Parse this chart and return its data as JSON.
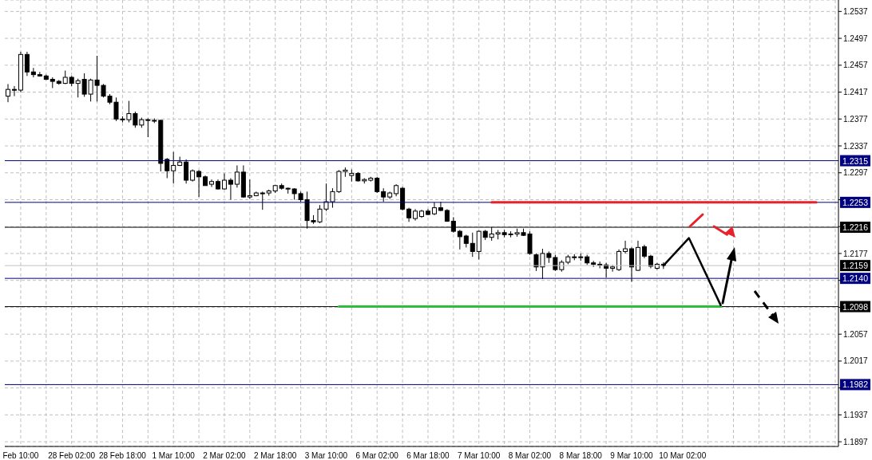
{
  "chart_data": {
    "type": "candlestick",
    "categories": [
      null,
      null,
      "Feb 10:00",
      null,
      null,
      null,
      null,
      null,
      null,
      null,
      "28 Feb 02:00",
      null,
      null,
      null,
      null,
      null,
      null,
      null,
      "28 Feb 18:00",
      null,
      null,
      null,
      null,
      null,
      null,
      null,
      "1 Mar 10:00",
      null,
      null,
      null,
      null,
      null,
      null,
      null,
      "2 Mar 02:00",
      null,
      null,
      null,
      null,
      null,
      null,
      null,
      "2 Mar 18:00",
      null,
      null,
      null,
      null,
      null,
      null,
      null,
      "3 Mar 10:00",
      null,
      null,
      null,
      null,
      null,
      null,
      null,
      "6 Mar 02:00",
      null,
      null,
      null,
      null,
      null,
      null,
      null,
      "6 Mar 18:00",
      null,
      null,
      null,
      null,
      null,
      null,
      null,
      "7 Mar 10:00",
      null,
      null,
      null,
      null,
      null,
      null,
      null,
      "8 Mar 02:00",
      null,
      null,
      null,
      null,
      null,
      null,
      null,
      "8 Mar 18:00",
      null,
      null,
      null,
      null,
      null,
      null,
      null,
      "9 Mar 10:00",
      null,
      null,
      null,
      null,
      null,
      null,
      null,
      "10 Mar 02:00",
      null,
      null,
      null,
      null,
      null,
      null,
      null,
      null,
      null,
      null,
      null,
      null,
      null,
      null,
      null,
      null,
      null,
      null,
      null,
      null,
      null,
      null,
      null,
      null
    ],
    "ohlc": [
      [
        1.2411,
        1.2429,
        1.2402,
        1.2421
      ],
      [
        1.2421,
        1.2426,
        1.2411,
        1.242
      ],
      [
        1.242,
        1.2477,
        1.2417,
        1.2473
      ],
      [
        1.2473,
        1.2477,
        1.2441,
        1.2447
      ],
      [
        1.2447,
        1.2453,
        1.2439,
        1.2443
      ],
      [
        1.2443,
        1.2447,
        1.244,
        1.2441
      ],
      [
        1.2441,
        1.2443,
        1.2435,
        1.2436
      ],
      [
        1.2436,
        1.2439,
        1.2423,
        1.2433
      ],
      [
        1.2433,
        1.2435,
        1.2428,
        1.243
      ],
      [
        1.243,
        1.2449,
        1.2429,
        1.2439
      ],
      [
        1.2439,
        1.2441,
        1.2426,
        1.243
      ],
      [
        1.243,
        1.2437,
        1.2409,
        1.2434
      ],
      [
        1.2436,
        1.2445,
        1.241,
        1.2414
      ],
      [
        1.2414,
        1.2437,
        1.2403,
        1.2435
      ],
      [
        1.2435,
        1.2471,
        1.2403,
        1.2427
      ],
      [
        1.2427,
        1.2429,
        1.2409,
        1.2411
      ],
      [
        1.2411,
        1.2414,
        1.2399,
        1.2402
      ],
      [
        1.2402,
        1.2409,
        1.2374,
        1.2377
      ],
      [
        1.2377,
        1.2381,
        1.2372,
        1.2376
      ],
      [
        1.2376,
        1.2404,
        1.2372,
        1.2385
      ],
      [
        1.2385,
        1.2388,
        1.2364,
        1.2368
      ],
      [
        1.2368,
        1.2379,
        1.2364,
        1.2376
      ],
      [
        1.2376,
        1.2378,
        1.235,
        1.2375
      ],
      [
        1.2375,
        1.2378,
        1.2371,
        1.2375
      ],
      [
        1.2375,
        1.2376,
        1.2299,
        1.2311
      ],
      [
        1.2317,
        1.2319,
        1.2289,
        1.23
      ],
      [
        1.23,
        1.2328,
        1.2281,
        1.2308
      ],
      [
        1.2308,
        1.2321,
        1.2307,
        1.2313
      ],
      [
        1.2313,
        1.2317,
        1.2281,
        1.2286
      ],
      [
        1.2286,
        1.2302,
        1.2284,
        1.23
      ],
      [
        1.2299,
        1.2301,
        1.2261,
        1.2291
      ],
      [
        1.2291,
        1.2293,
        1.2278,
        1.2278
      ],
      [
        1.228,
        1.2287,
        1.2276,
        1.2284
      ],
      [
        1.2284,
        1.2287,
        1.2272,
        1.2273
      ],
      [
        1.2273,
        1.2296,
        1.2272,
        1.2286
      ],
      [
        1.2286,
        1.2289,
        1.2257,
        1.228
      ],
      [
        1.228,
        1.2308,
        1.2275,
        1.2298
      ],
      [
        1.2298,
        1.2308,
        1.226,
        1.2261
      ],
      [
        1.2261,
        1.2287,
        1.2258,
        1.2263
      ],
      [
        1.2263,
        1.2269,
        1.2262,
        1.2267
      ],
      [
        1.2267,
        1.2269,
        1.2242,
        1.2266
      ],
      [
        1.2267,
        1.2272,
        1.2263,
        1.227
      ],
      [
        1.227,
        1.2279,
        1.2267,
        1.2278
      ],
      [
        1.2278,
        1.2281,
        1.2272,
        1.2274
      ],
      [
        1.2274,
        1.2275,
        1.2266,
        1.2273
      ],
      [
        1.2273,
        1.2274,
        1.2257,
        1.2266
      ],
      [
        1.2266,
        1.2269,
        1.2254,
        1.2257
      ],
      [
        1.2257,
        1.2269,
        1.2214,
        1.2226
      ],
      [
        1.2226,
        1.2234,
        1.2221,
        1.2224
      ],
      [
        1.2224,
        1.2249,
        1.2222,
        1.2243
      ],
      [
        1.2243,
        1.2281,
        1.224,
        1.2254
      ],
      [
        1.2254,
        1.2274,
        1.2245,
        1.2269
      ],
      [
        1.2269,
        1.2301,
        1.2267,
        1.2299
      ],
      [
        1.2299,
        1.2305,
        1.2291,
        1.2301
      ],
      [
        1.2293,
        1.2302,
        1.2284,
        1.2296
      ],
      [
        1.2296,
        1.2298,
        1.2284,
        1.2285
      ],
      [
        1.2285,
        1.2289,
        1.2281,
        1.2287
      ],
      [
        1.2286,
        1.2291,
        1.2284,
        1.2289
      ],
      [
        1.2289,
        1.2291,
        1.2267,
        1.2269
      ],
      [
        1.2269,
        1.2274,
        1.2254,
        1.2261
      ],
      [
        1.2261,
        1.2269,
        1.2258,
        1.2267
      ],
      [
        1.2266,
        1.228,
        1.2262,
        1.2278
      ],
      [
        1.2274,
        1.2276,
        1.2241,
        1.2243
      ],
      [
        1.2243,
        1.2245,
        1.2224,
        1.223
      ],
      [
        1.2229,
        1.2243,
        1.2226,
        1.224
      ],
      [
        1.2232,
        1.2242,
        1.223,
        1.224
      ],
      [
        1.224,
        1.2243,
        1.2234,
        1.2235
      ],
      [
        1.2236,
        1.2253,
        1.2234,
        1.2245
      ],
      [
        1.2245,
        1.2254,
        1.224,
        1.2241
      ],
      [
        1.2241,
        1.2243,
        1.2224,
        1.2225
      ],
      [
        1.2225,
        1.2231,
        1.2208,
        1.221
      ],
      [
        1.221,
        1.2212,
        1.2183,
        1.2202
      ],
      [
        1.2203,
        1.2205,
        1.2186,
        1.2192
      ],
      [
        1.2192,
        1.2208,
        1.2172,
        1.218
      ],
      [
        1.218,
        1.2211,
        1.2168,
        1.221
      ],
      [
        1.221,
        1.2212,
        1.2197,
        1.2201
      ],
      [
        1.2201,
        1.2216,
        1.2196,
        1.2206
      ],
      [
        1.2206,
        1.2212,
        1.2198,
        1.2208
      ],
      [
        1.2208,
        1.2212,
        1.2201,
        1.2205
      ],
      [
        1.2205,
        1.221,
        1.2201,
        1.2206
      ],
      [
        1.2206,
        1.2214,
        1.2202,
        1.2208
      ],
      [
        1.2208,
        1.2214,
        1.2203,
        1.2204
      ],
      [
        1.2206,
        1.221,
        1.2175,
        1.2177
      ],
      [
        1.2175,
        1.2177,
        1.2151,
        1.2157
      ],
      [
        1.2157,
        1.2184,
        1.2139,
        1.2177
      ],
      [
        1.2177,
        1.218,
        1.2163,
        1.2171
      ],
      [
        1.2171,
        1.2175,
        1.2151,
        1.2153
      ],
      [
        1.2153,
        1.2167,
        1.215,
        1.2164
      ],
      [
        1.2164,
        1.2175,
        1.2161,
        1.2172
      ],
      [
        1.2172,
        1.2176,
        1.2167,
        1.2171
      ],
      [
        1.2171,
        1.2177,
        1.2166,
        1.2172
      ],
      [
        1.2172,
        1.2175,
        1.216,
        1.2163
      ],
      [
        1.2163,
        1.2166,
        1.2157,
        1.2161
      ],
      [
        1.2161,
        1.2165,
        1.2155,
        1.216
      ],
      [
        1.216,
        1.2163,
        1.2141,
        1.2155
      ],
      [
        1.2155,
        1.216,
        1.215,
        1.2157
      ],
      [
        1.2153,
        1.2183,
        1.2151,
        1.218
      ],
      [
        1.218,
        1.2196,
        1.2177,
        1.2184
      ],
      [
        1.2184,
        1.2186,
        1.2135,
        1.2157
      ],
      [
        1.2152,
        1.2196,
        1.2151,
        1.2186
      ],
      [
        1.2187,
        1.219,
        1.217,
        1.2173
      ],
      [
        1.2173,
        1.2175,
        1.2155,
        1.2158
      ],
      [
        1.2155,
        1.2163,
        1.2153,
        1.2161
      ],
      [
        1.2161,
        1.2164,
        1.2154,
        1.2159
      ],
      null,
      null,
      null,
      null,
      null,
      null,
      null,
      null,
      null,
      null,
      null,
      null,
      null,
      null,
      null,
      null,
      null,
      null,
      null,
      null,
      null,
      null,
      null,
      null,
      null,
      null,
      null
    ],
    "series": [
      {
        "type": "line",
        "color": "#e8212b",
        "values": [
          null,
          null,
          null,
          null,
          null,
          null,
          null,
          null,
          null,
          null,
          null,
          null,
          null,
          null,
          null,
          null,
          null,
          null,
          null,
          null,
          null,
          null,
          null,
          null,
          null,
          null,
          null,
          null,
          null,
          null,
          null,
          null,
          null,
          null,
          null,
          null,
          null,
          null,
          null,
          null,
          null,
          null,
          null,
          null,
          null,
          null,
          null,
          null,
          null,
          null,
          null,
          null,
          null,
          null,
          null,
          null,
          null,
          null,
          null,
          null,
          null,
          null,
          null,
          null,
          null,
          null,
          null,
          null,
          null,
          null,
          null,
          null,
          null,
          null,
          null,
          null,
          1.2253,
          1.2253,
          1.2253,
          1.2253,
          1.2253,
          1.2253,
          1.2253,
          1.2253,
          1.2253,
          1.2253,
          1.2253,
          1.2253,
          1.2253,
          1.2253,
          1.2253,
          1.2253,
          1.2253,
          1.2253,
          1.2253,
          1.2253,
          1.2253,
          1.2253,
          1.2253,
          1.2253,
          1.2253,
          1.2253,
          1.2253,
          1.2253,
          1.2253,
          1.2253,
          1.2253,
          1.2253,
          1.2253,
          1.2253,
          1.2253,
          1.2253,
          1.2253,
          1.2253,
          1.2253,
          1.2253,
          1.2253,
          1.2253,
          1.2253,
          1.2253,
          1.2253,
          1.2253,
          1.2253,
          1.2253,
          1.2253,
          1.2253,
          1.2253,
          1.2253,
          null,
          null,
          null
        ]
      },
      {
        "type": "line",
        "color": "#2ebd3c",
        "values": [
          null,
          null,
          null,
          null,
          null,
          null,
          null,
          null,
          null,
          null,
          null,
          null,
          null,
          null,
          null,
          null,
          null,
          null,
          null,
          null,
          null,
          null,
          null,
          null,
          null,
          null,
          null,
          null,
          null,
          null,
          null,
          null,
          null,
          null,
          null,
          null,
          null,
          null,
          null,
          null,
          null,
          null,
          null,
          null,
          null,
          null,
          null,
          null,
          null,
          null,
          null,
          null,
          1.2098,
          1.2098,
          1.2098,
          1.2098,
          1.2098,
          1.2098,
          1.2098,
          1.2098,
          1.2098,
          1.2098,
          1.2098,
          1.2098,
          1.2098,
          1.2098,
          1.2098,
          1.2098,
          1.2098,
          1.2098,
          1.2098,
          1.2098,
          1.2098,
          1.2098,
          1.2098,
          1.2098,
          1.2098,
          1.2098,
          1.2098,
          1.2098,
          1.2098,
          1.2098,
          1.2098,
          1.2098,
          1.2098,
          1.2098,
          1.2098,
          1.2098,
          1.2098,
          1.2098,
          1.2098,
          1.2098,
          1.2098,
          1.2098,
          1.2098,
          1.2098,
          1.2098,
          1.2098,
          1.2098,
          1.2098,
          1.2098,
          1.2098,
          1.2098,
          1.2098,
          1.2098,
          1.2098,
          1.2098,
          1.2098,
          1.2098,
          1.2098,
          1.2098,
          1.2098,
          1.2098,
          null,
          null,
          null,
          null,
          null,
          null,
          null,
          null,
          null,
          null,
          null,
          null,
          null,
          null,
          null,
          null,
          null,
          null
        ]
      },
      {
        "type": "line",
        "color": "#000000",
        "values": [
          null,
          null,
          null,
          null,
          null,
          null,
          null,
          null,
          null,
          null,
          null,
          null,
          null,
          null,
          null,
          null,
          null,
          null,
          null,
          null,
          null,
          null,
          null,
          null,
          null,
          null,
          null,
          null,
          null,
          null,
          null,
          null,
          null,
          null,
          null,
          null,
          null,
          null,
          null,
          null,
          null,
          null,
          null,
          null,
          null,
          null,
          null,
          null,
          null,
          null,
          null,
          null,
          null,
          null,
          null,
          null,
          null,
          null,
          null,
          null,
          null,
          null,
          null,
          null,
          null,
          null,
          null,
          null,
          null,
          null,
          null,
          null,
          null,
          null,
          null,
          null,
          null,
          null,
          null,
          null,
          null,
          null,
          null,
          null,
          null,
          null,
          null,
          null,
          null,
          null,
          null,
          null,
          null,
          null,
          null,
          null,
          null,
          null,
          null,
          null,
          null,
          null,
          null,
          1.2159,
          null,
          null,
          null,
          1.22,
          null,
          null,
          null,
          null,
          1.21,
          null,
          null,
          null,
          null,
          null,
          null,
          null,
          null,
          null,
          null,
          null,
          null,
          null,
          null,
          null,
          null,
          null,
          null
        ]
      }
    ],
    "ylim": [
      1.189,
      1.2554
    ],
    "yticks": [
      1.1897,
      1.1937,
      {
        "value": 1.1977,
        "label": null
      },
      1.2017,
      1.2057,
      {
        "value": 1.2097,
        "label": null
      },
      {
        "value": 1.2137,
        "label": null
      },
      1.2177,
      {
        "value": 1.2217,
        "label": null
      },
      {
        "value": 1.2257,
        "label": null
      },
      1.2297,
      1.2337,
      1.2377,
      1.2417,
      1.2457,
      1.2497,
      1.2537
    ],
    "ref_lines": [
      {
        "axis": "y",
        "value": 1.2315,
        "label": "1.2315",
        "color": "#000080"
      },
      {
        "axis": "y",
        "value": 1.2253,
        "label": "1.2253",
        "color": "#000080"
      },
      {
        "axis": "y",
        "value": 1.2216,
        "label": "1.2216",
        "color": "#000000"
      },
      {
        "axis": "y",
        "value": 1.2159,
        "label": "1.2159",
        "color": "#c0c0c0"
      },
      {
        "axis": "y",
        "value": 1.214,
        "label": "1.2140",
        "color": "#000080"
      },
      {
        "axis": "y",
        "value": 1.2098,
        "label": "1.2098",
        "color": "#000000"
      },
      {
        "axis": "y",
        "value": 1.1982,
        "label": "1.1982",
        "color": "#000080"
      }
    ],
    "grid": true
  }
}
